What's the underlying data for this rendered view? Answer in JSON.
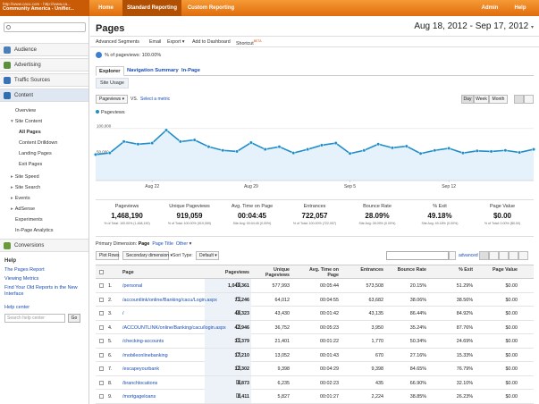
{
  "topbar": {
    "account_url": "http://www.cacu.com - http://www.ca...",
    "account_name": "Community America - Unifier...",
    "nav": [
      "Home",
      "Standard Reporting",
      "Custom Reporting"
    ],
    "admin": "Admin",
    "help": "Help"
  },
  "sidebar": {
    "search_placeholder": "",
    "sections": {
      "audience": "Audience",
      "advertising": "Advertising",
      "traffic": "Traffic Sources",
      "content": "Content",
      "conversions": "Conversions"
    },
    "content_items": {
      "overview": "Overview",
      "site_content": "Site Content",
      "all_pages": "All Pages",
      "drilldown": "Content Drilldown",
      "landing": "Landing Pages",
      "exit": "Exit Pages",
      "speed": "Site Speed",
      "search": "Site Search",
      "events": "Events",
      "adsense": "AdSense",
      "experiments": "Experiments",
      "inpage": "In-Page Analytics"
    },
    "help": {
      "title": "Help",
      "link1": "The Pages Report",
      "link2": "Viewing Metrics",
      "link3": "Find Your Old Reports in the New Interface",
      "center": "Help center",
      "search_placeholder": "Search help center",
      "go": "Go"
    }
  },
  "main": {
    "title": "Pages",
    "date_range": "Aug 18, 2012 - Sep 17, 2012",
    "toolbar": {
      "advanced_segments": "Advanced Segments",
      "email": "Email",
      "export": "Export",
      "add_dashboard": "Add to Dashboard",
      "shortcut": "Shortcut",
      "beta": "BETA"
    },
    "segment": "% of pageviews: 100.00%",
    "tabs": [
      "Explorer",
      "Navigation Summary",
      "In-Page"
    ],
    "subtab": "Site Usage",
    "metric_select": "Pageviews",
    "vs": "VS.",
    "select_metric": "Select a metric",
    "time_buttons": [
      "Day",
      "Week",
      "Month"
    ],
    "legend": "Pageviews"
  },
  "chart_data": {
    "type": "line",
    "series": [
      {
        "name": "Pageviews",
        "values": [
          50000,
          53000,
          75000,
          70000,
          72000,
          97000,
          75000,
          78000,
          65000,
          58000,
          56000,
          73000,
          60000,
          65000,
          53000,
          60000,
          68000,
          72000,
          52000,
          58000,
          70000,
          63000,
          66000,
          52000,
          58000,
          62000,
          53000,
          57000,
          56000,
          58000,
          54000,
          60000
        ]
      }
    ],
    "x_tick_labels": [
      "Aug 22",
      "Aug 29",
      "Sep 5",
      "Sep 12"
    ],
    "y_tick_labels": [
      "100,000",
      "50,000"
    ],
    "ylim": [
      0,
      110000
    ],
    "color": "#1f8ec9",
    "grid": true
  },
  "scorecards": [
    {
      "title": "Pageviews",
      "value": "1,468,190",
      "sub": "% of Total: 100.00% (1,468,190)"
    },
    {
      "title": "Unique Pageviews",
      "value": "919,059",
      "sub": "% of Total: 100.00% (919,059)"
    },
    {
      "title": "Avg. Time on Page",
      "value": "00:04:45",
      "sub": "Site Avg: 00:04:45 (0.00%)"
    },
    {
      "title": "Entrances",
      "value": "722,057",
      "sub": "% of Total: 100.00% (722,057)"
    },
    {
      "title": "Bounce Rate",
      "value": "28.09%",
      "sub": "Site Avg: 28.09% (0.00%)"
    },
    {
      "title": "% Exit",
      "value": "49.18%",
      "sub": "Site Avg: 49.18% (0.00%)"
    },
    {
      "title": "Page Value",
      "value": "$0.00",
      "sub": "% of Total: 0.00% ($0.00)"
    }
  ],
  "table_controls": {
    "primary_dim_label": "Primary Dimension:",
    "dim_page": "Page",
    "dim_title": "Page Title",
    "dim_other": "Other",
    "plot_rows": "Plot Rows",
    "secondary": "Secondary dimension",
    "sort_type_label": "Sort Type:",
    "sort_type": "Default",
    "advanced": "advanced"
  },
  "table": {
    "headers": [
      "Page",
      "Pageviews",
      "Unique Pageviews",
      "Avg. Time on Page",
      "Entrances",
      "Bounce Rate",
      "% Exit",
      "Page Value"
    ],
    "rows": [
      [
        "1.",
        "/personal",
        "1,049,361",
        "577,993",
        "00:05:44",
        "573,508",
        "20.15%",
        "51.29%",
        "$0.00"
      ],
      [
        "2.",
        "/accountlink/online/Banking/cacu/Login.aspx",
        "71,246",
        "64,012",
        "00:04:55",
        "63,682",
        "38.06%",
        "38.56%",
        "$0.00"
      ],
      [
        "3.",
        "/",
        "48,323",
        "43,430",
        "00:01:42",
        "43,135",
        "86.44%",
        "84.92%",
        "$0.00"
      ],
      [
        "4.",
        "/ACCOUNTLINK/online/Banking/cacu/login.aspx",
        "42,946",
        "36,752",
        "00:05:23",
        "3,950",
        "35.24%",
        "87.76%",
        "$0.00"
      ],
      [
        "5.",
        "/checking-accounts",
        "31,379",
        "21,401",
        "00:01:22",
        "1,770",
        "50.34%",
        "24.69%",
        "$0.00"
      ],
      [
        "6.",
        "/mobileonlinebanking",
        "17,210",
        "13,052",
        "00:01:43",
        "670",
        "27.16%",
        "15.33%",
        "$0.00"
      ],
      [
        "7.",
        "/escapeyourbank",
        "12,302",
        "9,398",
        "00:04:29",
        "9,398",
        "84.65%",
        "76.79%",
        "$0.00"
      ],
      [
        "8.",
        "/branchlocations",
        "8,873",
        "6,235",
        "00:02:23",
        "435",
        "66.90%",
        "32.10%",
        "$0.00"
      ],
      [
        "9.",
        "/mortgageloans",
        "8,411",
        "5,827",
        "00:01:27",
        "2,224",
        "38.85%",
        "26.23%",
        "$0.00"
      ],
      [
        "10.",
        "/freechecking",
        "8,346",
        "6,595",
        "00:02:10",
        "229",
        "68.12%",
        "22.40%",
        "$0.00"
      ]
    ]
  }
}
